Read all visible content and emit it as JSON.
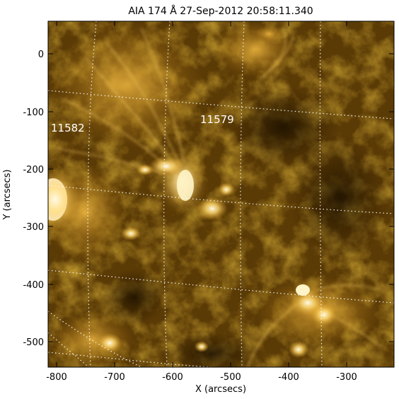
{
  "title": "AIA 174 Å 27-Sep-2012 20:58:11.340",
  "x_axis": {
    "label": "X (arcsecs)",
    "ticks": [
      "-800",
      "-700",
      "-600",
      "-500",
      "-400",
      "-300"
    ]
  },
  "y_axis": {
    "label": "Y (arcsecs)",
    "ticks": [
      "0",
      "-100",
      "-200",
      "-300",
      "-400",
      "-500"
    ]
  },
  "regions": [
    {
      "label": "11582"
    },
    {
      "label": "11579"
    }
  ],
  "colors": {
    "background": "#000000",
    "solar_mid": "#b07a10",
    "solar_bright": "#ffe090",
    "grid": "#ffffff"
  }
}
